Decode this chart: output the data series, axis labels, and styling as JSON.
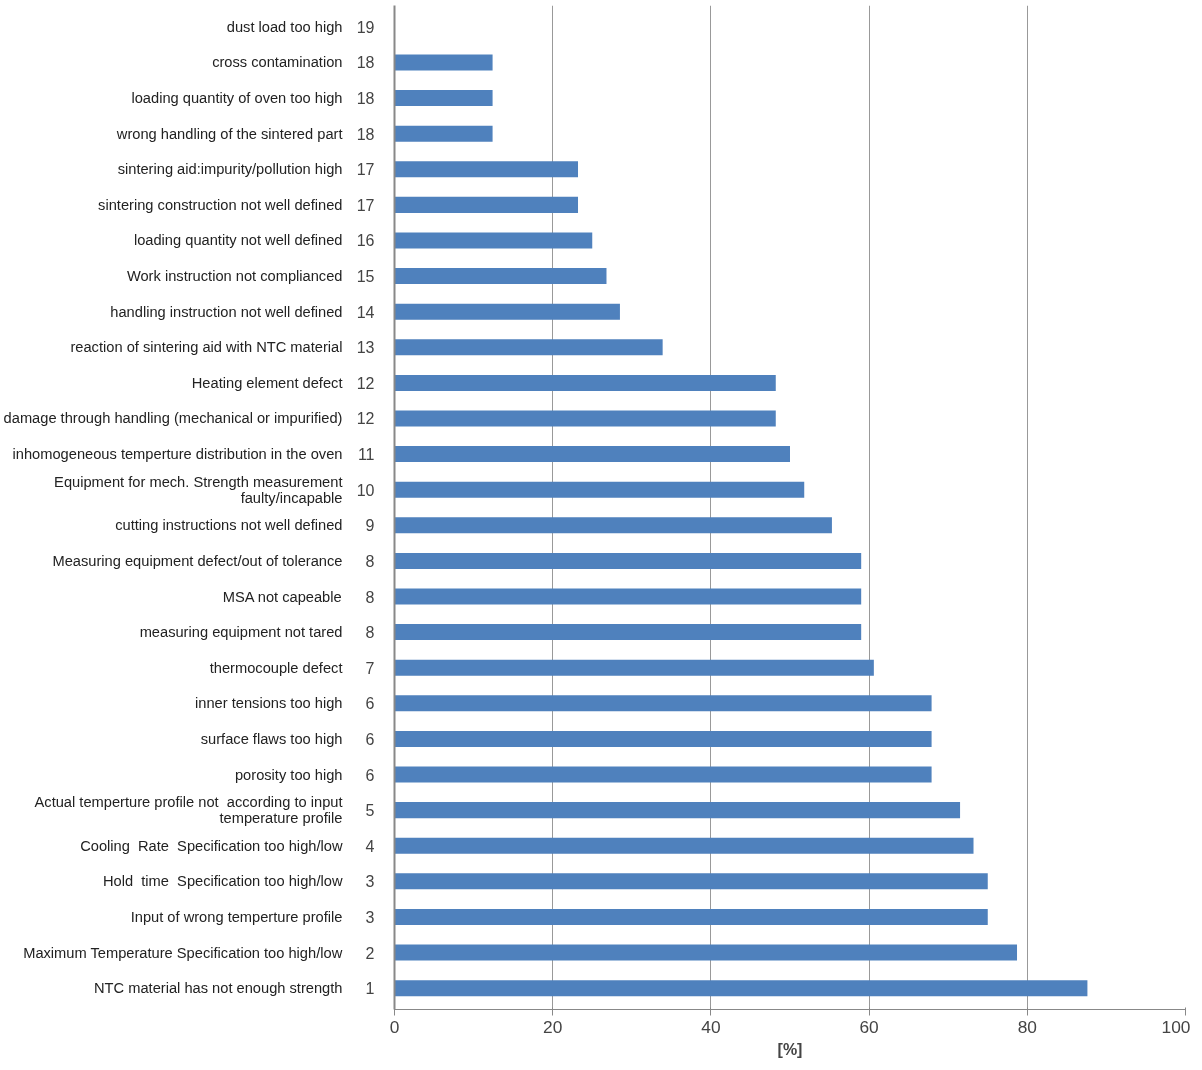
{
  "chart_data": {
    "type": "bar",
    "orientation": "horizontal",
    "xlabel": "[%]",
    "categories": [
      "dust load too high",
      "cross contamination",
      "loading quantity of oven too high",
      "wrong handling of the sintered part",
      "sintering aid:impurity/pollution high",
      "sintering construction not well defined",
      "loading quantity not well defined",
      "Work instruction not complianced",
      "handling instruction not well defined",
      "reaction of sintering aid with NTC material",
      "Heating element defect",
      "damage through handling (mechanical or impurified)",
      "inhomogeneous temperture distribution in the oven",
      "Equipment for mech. Strength measurement faulty/incapable",
      "cutting instructions not well defined",
      "Measuring equipment defect/out of tolerance",
      "MSA not capeable",
      "measuring equipment not tared",
      "thermocouple defect",
      "inner tensions too high",
      "surface flaws too high",
      "porosity too high",
      "Actual temperture profile not  according to input temperature profile",
      "Cooling  Rate  Specification too high/low",
      "Hold  time  Specification too high/low",
      "Input of wrong temperture profile",
      "Maximum Temperature Specification too high/low",
      "NTC material has not enough strength"
    ],
    "values": [
      null,
      12.4,
      12.4,
      12.4,
      23.2,
      23.2,
      25.0,
      26.8,
      28.5,
      33.9,
      48.2,
      48.2,
      50.0,
      51.8,
      55.3,
      59.0,
      59.0,
      59.0,
      60.6,
      67.9,
      67.9,
      67.9,
      71.5,
      73.2,
      75.0,
      75.0,
      78.7,
      87.6
    ],
    "color": "#4f81bd",
    "xlim": [
      0,
      100
    ],
    "xticks": [
      0,
      20,
      40,
      60,
      80,
      100
    ],
    "grid": "x",
    "annotations": [
      "19",
      "18",
      "18",
      "18",
      "17",
      "17",
      "16",
      "15",
      "14",
      "13",
      "12",
      "12",
      "11",
      "10",
      "9",
      "8",
      "8",
      "8",
      "7",
      "6",
      "6",
      "6",
      "5",
      "4",
      "3",
      "3",
      "2",
      "1"
    ]
  }
}
